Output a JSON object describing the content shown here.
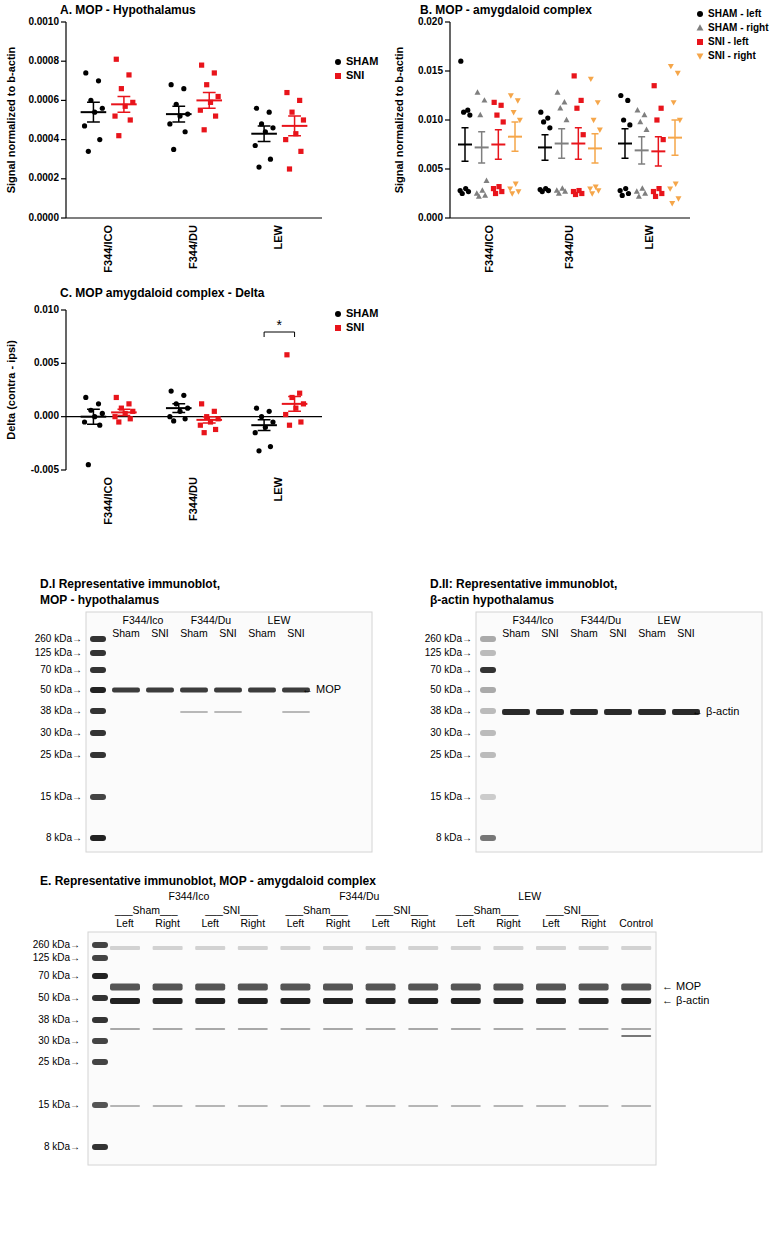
{
  "chart_data": [
    {
      "type": "dot",
      "title": "A. MOP - Hypothalamus",
      "y_label": "Signal normalized to b-actin",
      "categories": [
        "F344/ICO",
        "F344/DU",
        "LEW"
      ],
      "ylim": [
        0,
        0.001
      ],
      "yticks": [
        {
          "value": 0,
          "label": "0.0000"
        },
        0.0002,
        0.0004,
        0.0006,
        0.0008,
        {
          "value": 0.001,
          "label": "0.0010"
        }
      ],
      "legend": "right",
      "series": [
        {
          "name": "SHAM",
          "color": "#000000",
          "marker": "circle",
          "values": [
            [
              0.00074,
              0.0007,
              0.0006,
              0.00056,
              0.00054,
              0.00047,
              0.0004,
              0.00034
            ],
            [
              0.00068,
              0.00066,
              0.00058,
              0.00053,
              0.00052,
              0.00048,
              0.00044,
              0.00035
            ],
            [
              0.00056,
              0.00054,
              0.00048,
              0.00046,
              0.00044,
              0.00037,
              0.0003,
              0.00026
            ]
          ],
          "mean": [
            0.00054,
            0.00053,
            0.00043
          ],
          "sem": [
            5e-05,
            4e-05,
            4e-05
          ]
        },
        {
          "name": "SNI",
          "color": "#e8141b",
          "marker": "square",
          "values": [
            [
              0.00081,
              0.00073,
              0.00066,
              0.00059,
              0.00057,
              0.00052,
              0.0005,
              0.00042
            ],
            [
              0.00078,
              0.00074,
              0.00068,
              0.00062,
              0.00059,
              0.00055,
              0.00052,
              0.00045
            ],
            [
              0.00064,
              0.0006,
              0.00054,
              0.0005,
              0.00043,
              0.0004,
              0.00034,
              0.00025
            ]
          ],
          "mean": [
            0.00058,
            0.0006,
            0.00047
          ],
          "sem": [
            4e-05,
            4e-05,
            5e-05
          ]
        }
      ]
    },
    {
      "type": "dot",
      "title": "B. MOP - amygdaloid complex",
      "y_label": "Signal normalized to b-actin",
      "categories": [
        "F344/ICO",
        "F344/DU",
        "LEW"
      ],
      "ylim": [
        0,
        0.02
      ],
      "yticks": [
        {
          "value": 0,
          "label": "0.000"
        },
        0.005,
        {
          "value": 0.01,
          "label": "0.010"
        },
        0.015,
        {
          "value": 0.02,
          "label": "0.020"
        }
      ],
      "legend": "right",
      "series": [
        {
          "name": "SHAM - left",
          "color": "#000000",
          "marker": "circle",
          "values": [
            [
              0.016,
              0.011,
              0.0108,
              0.0105,
              0.003,
              0.0028,
              0.0027,
              0.0025
            ],
            [
              0.0108,
              0.0102,
              0.0098,
              0.0092,
              0.003,
              0.0029,
              0.0028,
              0.0027
            ],
            [
              0.0125,
              0.012,
              0.01,
              0.0095,
              0.003,
              0.0028,
              0.0025,
              0.0023
            ]
          ],
          "mean": [
            0.0075,
            0.0072,
            0.0076
          ],
          "sem": [
            0.0017,
            0.0013,
            0.0015
          ]
        },
        {
          "name": "SHAM - right",
          "color": "#7f7f7f",
          "marker": "triangle",
          "values": [
            [
              0.0128,
              0.012,
              0.0105,
              0.0038,
              0.0028,
              0.0025,
              0.0023,
              0.0022
            ],
            [
              0.0128,
              0.0118,
              0.0112,
              0.01,
              0.003,
              0.0028,
              0.0027,
              0.0025
            ],
            [
              0.011,
              0.0105,
              0.0098,
              0.009,
              0.003,
              0.0027,
              0.0025,
              0.0022
            ]
          ],
          "mean": [
            0.0072,
            0.0076,
            0.0069
          ],
          "sem": [
            0.0016,
            0.0015,
            0.0014
          ]
        },
        {
          "name": "SNI - left",
          "color": "#e8141b",
          "marker": "square",
          "values": [
            [
              0.0118,
              0.0115,
              0.0105,
              0.0098,
              0.0032,
              0.003,
              0.0027,
              0.0025
            ],
            [
              0.0145,
              0.012,
              0.0112,
              0.0085,
              0.0028,
              0.0027,
              0.0025,
              0.0024
            ],
            [
              0.0135,
              0.0112,
              0.01,
              0.008,
              0.003,
              0.0027,
              0.0025,
              0.0022
            ]
          ],
          "mean": [
            0.0075,
            0.0076,
            0.0068
          ],
          "sem": [
            0.0015,
            0.0016,
            0.0015
          ]
        },
        {
          "name": "SNI - right",
          "color": "#f5a64a",
          "marker": "triangle-down",
          "values": [
            [
              0.0125,
              0.012,
              0.0108,
              0.01,
              0.0035,
              0.003,
              0.0027,
              0.0025
            ],
            [
              0.0142,
              0.0118,
              0.01,
              0.009,
              0.0032,
              0.003,
              0.0028,
              0.0025
            ],
            [
              0.0155,
              0.0148,
              0.0118,
              0.01,
              0.0035,
              0.003,
              0.002,
              0.0015
            ]
          ],
          "mean": [
            0.0083,
            0.0071,
            0.0082
          ],
          "sem": [
            0.0015,
            0.0015,
            0.0018
          ]
        }
      ]
    },
    {
      "type": "dot",
      "title": "C. MOP amygdaloid complex - Delta",
      "y_label": "Delta (contra - ipsi)",
      "categories": [
        "F344/ICO",
        "F344/DU",
        "LEW"
      ],
      "ylim": [
        -0.005,
        0.01
      ],
      "yticks": [
        -0.005,
        {
          "value": 0,
          "label": "0.000"
        },
        0.005,
        {
          "value": 0.01,
          "label": "0.010"
        }
      ],
      "legend": "right",
      "annotations": [
        {
          "text": "*",
          "category": "LEW"
        }
      ],
      "series": [
        {
          "name": "SHAM",
          "color": "#000000",
          "marker": "circle",
          "values": [
            [
              0.0018,
              0.0012,
              0.0006,
              0.0003,
              0,
              -0.0005,
              -0.0008,
              -0.0045
            ],
            [
              0.0024,
              0.002,
              0.0012,
              0.0008,
              0.0005,
              0,
              -0.0002,
              -0.0004
            ],
            [
              0.0008,
              0.0005,
              0,
              -0.0005,
              -0.001,
              -0.0015,
              -0.0028,
              -0.0032
            ]
          ],
          "mean": [
            0,
            0.0008,
            -0.0008
          ],
          "sem": [
            0.0007,
            0.0004,
            0.0005
          ]
        },
        {
          "name": "SNI",
          "color": "#e8141b",
          "marker": "square",
          "values": [
            [
              0.0018,
              0.0012,
              0.0008,
              0.0005,
              0.0003,
              0,
              -0.0002,
              -0.0005
            ],
            [
              0.0012,
              0.0005,
              0,
              -0.0002,
              -0.0005,
              -0.0008,
              -0.0012,
              -0.0015
            ],
            [
              0.0058,
              0.0022,
              0.0018,
              0.0012,
              0.0008,
              0.0002,
              -0.0005,
              -0.0008
            ]
          ],
          "mean": [
            0.0004,
            -0.0003,
            0.0012
          ],
          "sem": [
            0.0003,
            0.0003,
            0.0007
          ]
        }
      ]
    }
  ],
  "blots": [
    {
      "title": [
        "D.I Representative immunoblot,",
        "MOP - hypothalamus"
      ],
      "ladder": [
        "260 kDa→",
        "125 kDa→",
        "70 kDa→",
        "50 kDa→",
        "38 kDa→",
        "30 kDa→",
        "25 kDa→",
        "15 kDa→",
        "8 kDa→"
      ],
      "groups": [
        "F344/Ico",
        "F344/Du",
        "LEW"
      ],
      "conditions": [
        "Sham",
        "SNI"
      ],
      "bands": [
        "← MOP"
      ]
    },
    {
      "title": [
        "D.II: Representative immunoblot,",
        "β-actin hypothalamus"
      ],
      "ladder": [
        "260 kDa→",
        "125 kDa→",
        "70 kDa→",
        "50 kDa→",
        "38 kDa→",
        "30 kDa→",
        "25 kDa→",
        "15 kDa→",
        "8 kDa→"
      ],
      "groups": [
        "F344/Ico",
        "F344/Du",
        "LEW"
      ],
      "conditions": [
        "Sham",
        "SNI"
      ],
      "bands": [
        "← β-actin"
      ]
    },
    {
      "title": [
        "E. Representative immunoblot, MOP - amygdaloid complex"
      ],
      "ladder": [
        "260 kDa→",
        "125 kDa→",
        "70 kDa→",
        "50 kDa→",
        "38 kDa→",
        "30 kDa→",
        "25 kDa→",
        "15 kDa→",
        "8 kDa→"
      ],
      "groups": [
        "F344/Ico",
        "F344/Du",
        "LEW"
      ],
      "conditions": [
        "___Sham___",
        "___SNI___"
      ],
      "sides": [
        "Left",
        "Right"
      ],
      "control": "Control",
      "bands": [
        "← MOP",
        "← β-actin"
      ]
    }
  ]
}
